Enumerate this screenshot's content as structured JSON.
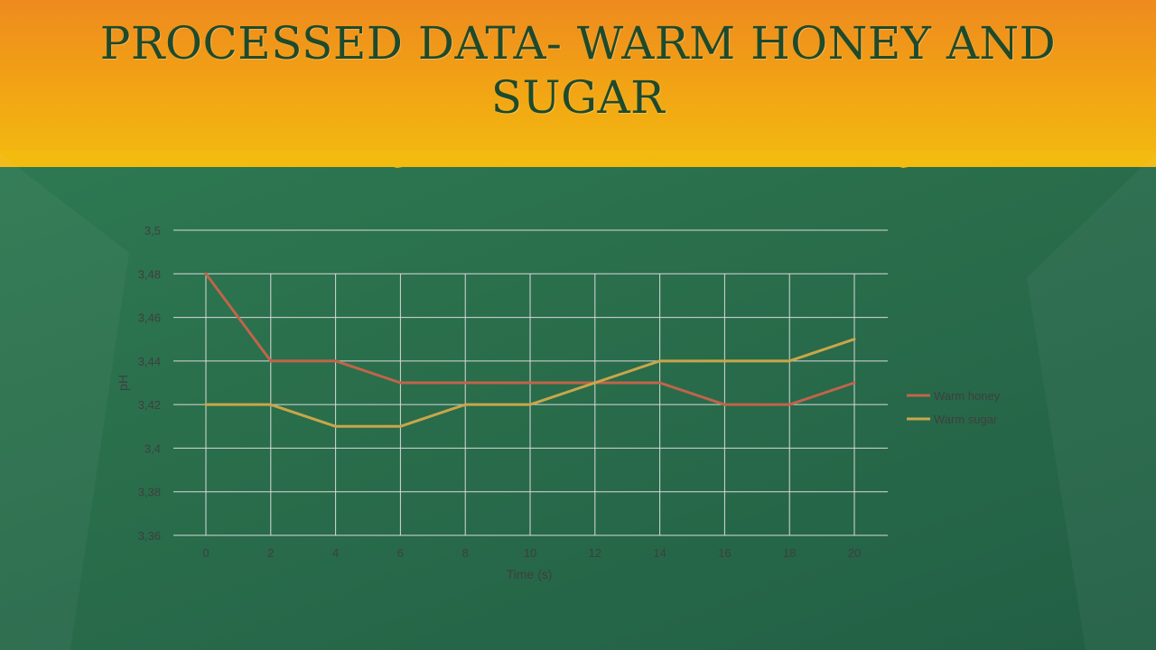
{
  "slide": {
    "title": "PROCESSED DATA- WARM HONEY AND SUGAR",
    "colors": {
      "banner_orange": "#ee8a1e",
      "banner_yellow": "#f3bb10",
      "background_green": "#2a6f4c",
      "title_green": "#1f4a2a"
    }
  },
  "chart_data": {
    "type": "line",
    "title": "",
    "xlabel": "Time (s)",
    "ylabel": "pH",
    "x": [
      0,
      2,
      4,
      6,
      8,
      10,
      12,
      14,
      16,
      18,
      20
    ],
    "x_tick_labels": [
      "0",
      "2",
      "4",
      "6",
      "8",
      "10",
      "12",
      "14",
      "16",
      "18",
      "20"
    ],
    "ylim": [
      3.36,
      3.5
    ],
    "y_ticks": [
      3.36,
      3.38,
      3.4,
      3.42,
      3.44,
      3.46,
      3.48,
      3.5
    ],
    "y_tick_labels": [
      "3,36",
      "3,38",
      "3,4",
      "3,42",
      "3,44",
      "3,46",
      "3,48",
      "3,5"
    ],
    "grid": "horizontal and vertical",
    "legend_position": "right",
    "series": [
      {
        "name": "Warm honey",
        "color": "#c0644a",
        "values": [
          3.48,
          3.44,
          3.44,
          3.43,
          3.43,
          3.43,
          3.43,
          3.43,
          3.42,
          3.42,
          3.43
        ]
      },
      {
        "name": "Warm sugar",
        "color": "#c9a64a",
        "values": [
          3.42,
          3.42,
          3.41,
          3.41,
          3.42,
          3.42,
          3.43,
          3.44,
          3.44,
          3.44,
          3.45
        ]
      }
    ]
  }
}
